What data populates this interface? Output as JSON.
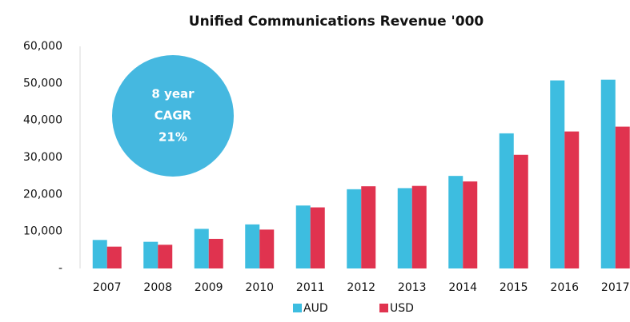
{
  "chart_data": {
    "type": "bar",
    "title": "Unified Communications Revenue '000",
    "categories": [
      "2007",
      "2008",
      "2009",
      "2010",
      "2011",
      "2012",
      "2013",
      "2014",
      "2015",
      "2016",
      "2017"
    ],
    "series": [
      {
        "name": "AUD",
        "color": "#3dbde0",
        "values": [
          7700,
          7200,
          10700,
          11900,
          17000,
          21400,
          21700,
          25000,
          36500,
          50800,
          51000
        ]
      },
      {
        "name": "USD",
        "color": "#e0334f",
        "values": [
          5900,
          6400,
          8000,
          10500,
          16500,
          22200,
          22300,
          23500,
          30700,
          37000,
          38300
        ]
      }
    ],
    "annotation": [
      "8 year",
      "CAGR",
      "21%"
    ],
    "ylim": [
      0,
      60000
    ],
    "yticks": [
      {
        "value": 0,
        "label": "-"
      },
      {
        "value": 10000,
        "label": "10,000"
      },
      {
        "value": 20000,
        "label": "20,000"
      },
      {
        "value": 30000,
        "label": "30,000"
      },
      {
        "value": 40000,
        "label": "40,000"
      },
      {
        "value": 50000,
        "label": "50,000"
      },
      {
        "value": 60000,
        "label": "60,000"
      }
    ],
    "grid": false,
    "legend": "bottom"
  }
}
